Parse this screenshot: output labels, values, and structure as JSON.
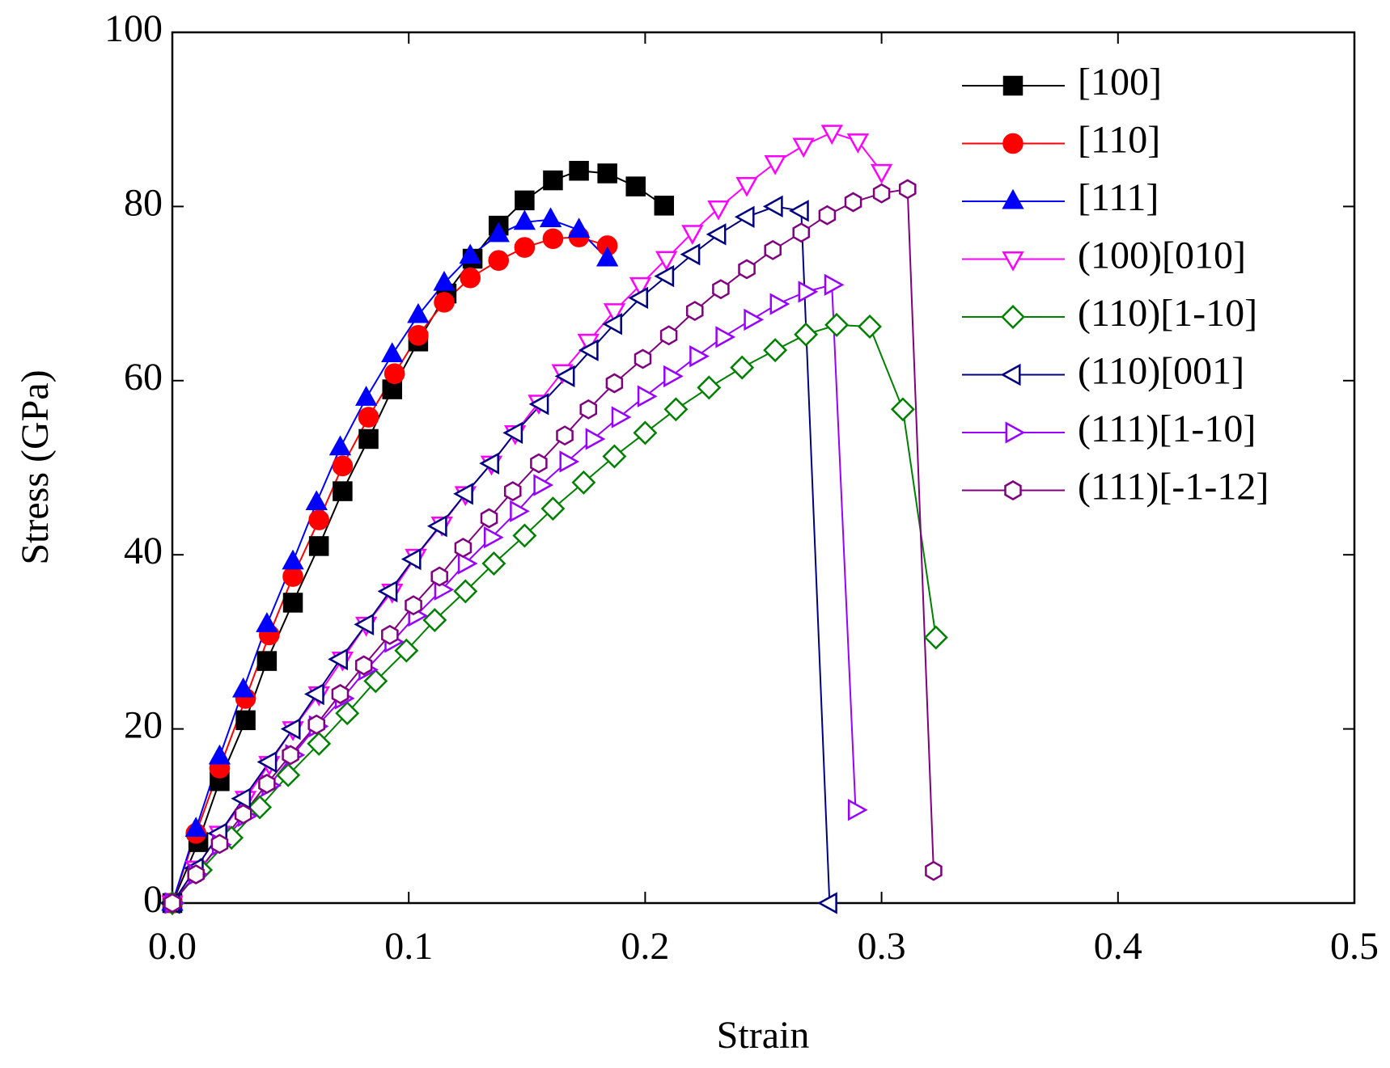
{
  "chart_data": {
    "type": "line",
    "xlabel": "Strain",
    "ylabel": "Stress (GPa)",
    "xlim": [
      0,
      0.5
    ],
    "xticks": [
      {
        "value": 0,
        "label": "0.0"
      },
      0.1,
      0.2,
      0.3,
      0.4,
      0.5
    ],
    "ylim": [
      0,
      100
    ],
    "yticks": [
      0,
      20,
      40,
      60,
      80,
      100
    ],
    "legend": "upper right",
    "series": [
      {
        "name": "[100]",
        "color": "#000000",
        "marker": "square",
        "filled": true,
        "x": [
          0,
          0.011,
          0.02,
          0.031,
          0.04,
          0.051,
          0.062,
          0.072,
          0.083,
          0.093,
          0.104,
          0.116,
          0.127,
          0.138,
          0.149,
          0.161,
          0.172,
          0.184,
          0.196,
          0.208
        ],
        "values": [
          0,
          7,
          14,
          21,
          27.8,
          34.5,
          41,
          47.3,
          53.3,
          59,
          64.5,
          70,
          74,
          77.8,
          80.7,
          83,
          84.1,
          83.8,
          82.3,
          80.1
        ]
      },
      {
        "name": "[110]",
        "color": "#ff0000",
        "marker": "circle",
        "filled": true,
        "x": [
          0,
          0.01,
          0.02,
          0.031,
          0.041,
          0.051,
          0.062,
          0.072,
          0.083,
          0.094,
          0.104,
          0.115,
          0.126,
          0.138,
          0.149,
          0.161,
          0.172,
          0.184
        ],
        "values": [
          0,
          8,
          15.5,
          23.5,
          30.8,
          37.5,
          44,
          50.2,
          55.8,
          60.8,
          65.2,
          69,
          71.8,
          73.8,
          75.3,
          76.3,
          76.5,
          75.5
        ]
      },
      {
        "name": "[111]",
        "color": "#0000ff",
        "marker": "triangle-up",
        "filled": true,
        "x": [
          0,
          0.01,
          0.02,
          0.03,
          0.04,
          0.051,
          0.061,
          0.071,
          0.082,
          0.093,
          0.104,
          0.115,
          0.126,
          0.138,
          0.149,
          0.16,
          0.172,
          0.184
        ],
        "values": [
          0,
          8.5,
          16.8,
          24.5,
          32,
          39.2,
          46,
          52.3,
          58,
          63,
          67.5,
          71.2,
          74.3,
          76.8,
          78.2,
          78.5,
          77.3,
          74
        ]
      },
      {
        "name": "(100)[010]",
        "color": "#ff00ff",
        "marker": "triangle-down",
        "filled": false,
        "x": [
          0,
          0.01,
          0.02,
          0.031,
          0.041,
          0.051,
          0.062,
          0.072,
          0.082,
          0.093,
          0.103,
          0.114,
          0.124,
          0.135,
          0.145,
          0.155,
          0.165,
          0.176,
          0.187,
          0.198,
          0.209,
          0.22,
          0.231,
          0.243,
          0.255,
          0.267,
          0.279,
          0.29,
          0.3
        ],
        "values": [
          0,
          4,
          8,
          12,
          16,
          20,
          24,
          28,
          32,
          35.8,
          39.8,
          43.5,
          47,
          50.5,
          54,
          57.5,
          61,
          64.5,
          68,
          71,
          74,
          77,
          79.8,
          82.5,
          85,
          87,
          88.5,
          87.5,
          84
        ]
      },
      {
        "name": "(110)[1-10]",
        "color": "#008000",
        "marker": "diamond",
        "filled": false,
        "x": [
          0,
          0.012,
          0.025,
          0.037,
          0.049,
          0.062,
          0.074,
          0.086,
          0.099,
          0.111,
          0.124,
          0.136,
          0.149,
          0.161,
          0.174,
          0.187,
          0.2,
          0.213,
          0.227,
          0.241,
          0.255,
          0.268,
          0.281,
          0.295,
          0.309,
          0.323
        ],
        "values": [
          0,
          3.8,
          7.5,
          11,
          14.7,
          18.3,
          21.8,
          25.5,
          29,
          32.5,
          35.8,
          39,
          42.2,
          45.3,
          48.3,
          51.3,
          54,
          56.7,
          59.2,
          61.5,
          63.5,
          65.3,
          66.4,
          66.2,
          56.7,
          30.5
        ]
      },
      {
        "name": "(110)[001]",
        "color": "#000080",
        "marker": "triangle-left",
        "filled": false,
        "x": [
          0,
          0.01,
          0.02,
          0.03,
          0.041,
          0.051,
          0.061,
          0.071,
          0.082,
          0.092,
          0.102,
          0.113,
          0.124,
          0.135,
          0.145,
          0.156,
          0.167,
          0.177,
          0.187,
          0.198,
          0.209,
          0.22,
          0.231,
          0.243,
          0.255,
          0.266,
          0.278
        ],
        "values": [
          0,
          4,
          8,
          12,
          16.2,
          20,
          24,
          28,
          32,
          35.8,
          39.5,
          43.3,
          47,
          50.5,
          54,
          57.3,
          60.5,
          63.5,
          66.5,
          69.5,
          72,
          74.5,
          76.8,
          78.8,
          80,
          79.5,
          0
        ]
      },
      {
        "name": "(111)[1-10]",
        "color": "#9900ff",
        "marker": "triangle-right",
        "filled": false,
        "x": [
          0,
          0.01,
          0.02,
          0.031,
          0.041,
          0.051,
          0.061,
          0.072,
          0.082,
          0.093,
          0.103,
          0.114,
          0.124,
          0.135,
          0.146,
          0.156,
          0.167,
          0.178,
          0.189,
          0.2,
          0.211,
          0.222,
          0.233,
          0.245,
          0.256,
          0.268,
          0.279,
          0.289
        ],
        "values": [
          0,
          3.3,
          6.7,
          10,
          13.5,
          17,
          20.3,
          23.5,
          26.8,
          30,
          33,
          36,
          39,
          42,
          45,
          48,
          50.7,
          53.3,
          55.8,
          58.2,
          60.5,
          62.8,
          65,
          67,
          68.8,
          70.2,
          71,
          10.7
        ]
      },
      {
        "name": "(111)[-1-12]",
        "color": "#800080",
        "marker": "hexagon",
        "filled": false,
        "x": [
          0,
          0.01,
          0.02,
          0.03,
          0.04,
          0.05,
          0.061,
          0.071,
          0.081,
          0.092,
          0.102,
          0.113,
          0.123,
          0.134,
          0.144,
          0.155,
          0.166,
          0.176,
          0.187,
          0.199,
          0.21,
          0.221,
          0.232,
          0.243,
          0.254,
          0.266,
          0.277,
          0.288,
          0.3,
          0.311,
          0.322
        ],
        "values": [
          0,
          3.3,
          6.8,
          10.2,
          13.7,
          17,
          20.5,
          24,
          27.3,
          30.8,
          34.2,
          37.5,
          40.8,
          44.2,
          47.3,
          50.5,
          53.7,
          56.7,
          59.7,
          62.5,
          65.2,
          68,
          70.5,
          72.8,
          75,
          77,
          79,
          80.5,
          81.5,
          82,
          3.7
        ]
      }
    ]
  }
}
